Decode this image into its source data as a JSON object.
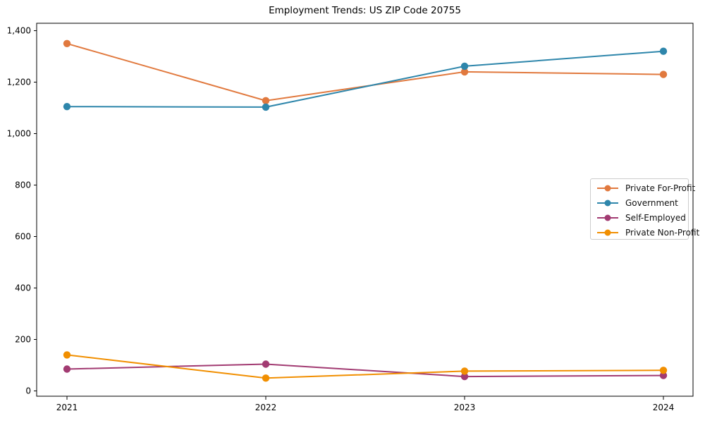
{
  "chart_data": {
    "type": "line",
    "title": "Employment Trends: US ZIP Code 20755",
    "x": [
      2021,
      2022,
      2023,
      2024
    ],
    "x_tick_labels": [
      "2021",
      "2022",
      "2023",
      "2024"
    ],
    "y_ticks": [
      0,
      200,
      400,
      600,
      800,
      1000,
      1200,
      1400
    ],
    "y_tick_labels": [
      "0",
      "200",
      "400",
      "600",
      "800",
      "1,000",
      "1,200",
      "1,400"
    ],
    "ylim": [
      -20,
      1430
    ],
    "grid": false,
    "legend_position": "center right",
    "series": [
      {
        "name": "Private For-Profit",
        "color": "#E1793E",
        "values": [
          1350,
          1128,
          1240,
          1230
        ]
      },
      {
        "name": "Government",
        "color": "#2E86AB",
        "values": [
          1105,
          1103,
          1262,
          1320
        ]
      },
      {
        "name": "Self-Employed",
        "color": "#A23B72",
        "values": [
          85,
          104,
          56,
          60
        ]
      },
      {
        "name": "Private Non-Profit",
        "color": "#F18F01",
        "values": [
          140,
          50,
          77,
          80
        ]
      }
    ],
    "axis_color": "#000000",
    "tick_label_color": "#000000"
  }
}
